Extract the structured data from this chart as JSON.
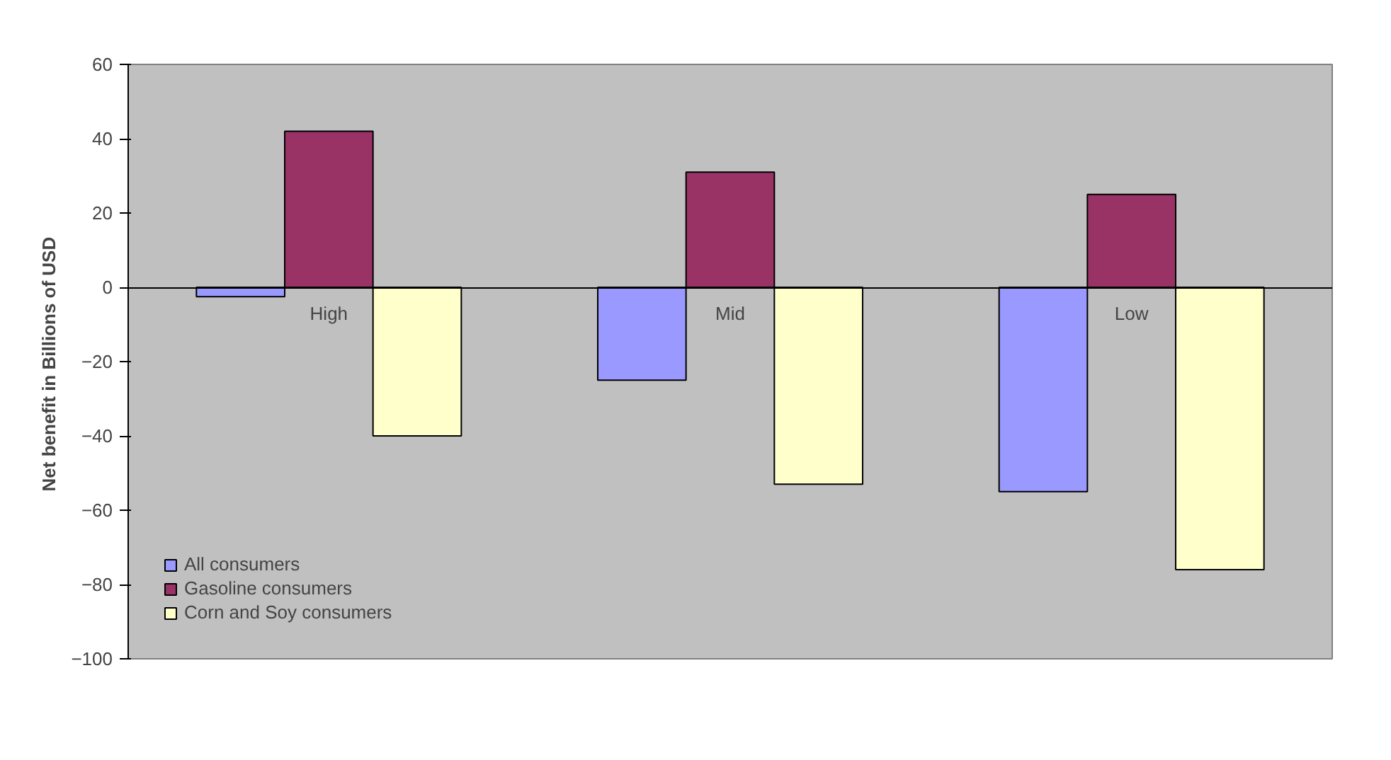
{
  "chart_data": {
    "type": "bar",
    "ylabel": "Net benefit in Billions of  USD",
    "categories": [
      "High",
      "Mid",
      "Low"
    ],
    "series": [
      {
        "name": "All consumers",
        "color": "#9999ff",
        "values": [
          -2.5,
          -25,
          -55
        ]
      },
      {
        "name": "Gasoline consumers",
        "color": "#993366",
        "values": [
          42,
          31,
          25
        ]
      },
      {
        "name": "Corn and Soy consumers",
        "color": "#ffffcc",
        "values": [
          -40,
          -53,
          -76
        ]
      }
    ],
    "ylim": [
      -100,
      60
    ],
    "yticks": [
      -100,
      -80,
      -60,
      -40,
      -20,
      0,
      20,
      40,
      60
    ],
    "grid": false,
    "legend": "bottom left"
  }
}
